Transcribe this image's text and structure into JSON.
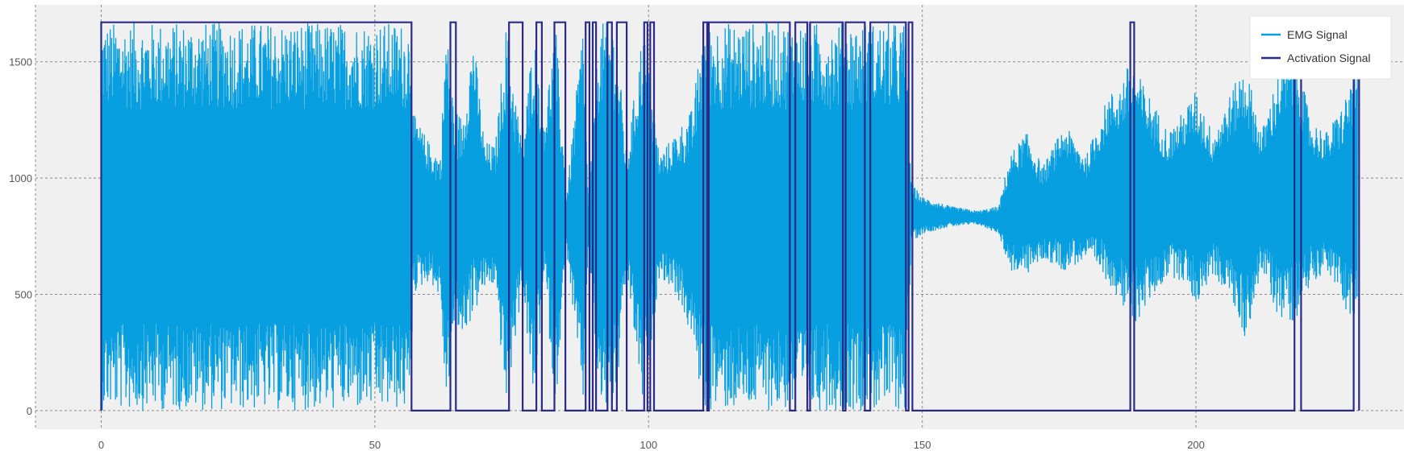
{
  "colors": {
    "plot_background": "#f0f0f0",
    "grid": "#8a8a8a",
    "emg": "#079fe0",
    "activation": "#2b2a86",
    "legend_background": "#ffffff"
  },
  "chart_data": {
    "type": "line",
    "title": "",
    "xlabel": "",
    "ylabel": "",
    "xlim": [
      -12,
      238
    ],
    "ylim": [
      -80,
      1745
    ],
    "xticks": [
      0,
      50,
      100,
      150,
      200
    ],
    "yticks": [
      0,
      500,
      1000,
      1500
    ],
    "grid": true,
    "legend_position": "top-right",
    "series": [
      {
        "name": "EMG Signal",
        "style": "dense oscillating signal",
        "envelope": [
          [
            0,
            0,
            1670
          ],
          [
            10,
            0,
            1670
          ],
          [
            20,
            0,
            1670
          ],
          [
            30,
            0,
            1670
          ],
          [
            40,
            0,
            1670
          ],
          [
            50,
            0,
            1670
          ],
          [
            56.5,
            0,
            1670
          ],
          [
            57,
            500,
            1280
          ],
          [
            60,
            560,
            1150
          ],
          [
            62,
            480,
            1100
          ],
          [
            63,
            0,
            1670
          ],
          [
            64.5,
            350,
            1300
          ],
          [
            66,
            320,
            1270
          ],
          [
            68,
            400,
            1620
          ],
          [
            70,
            520,
            1160
          ],
          [
            72,
            540,
            1140
          ],
          [
            74,
            0,
            1670
          ],
          [
            77,
            540,
            1130
          ],
          [
            79,
            0,
            1670
          ],
          [
            81,
            560,
            1270
          ],
          [
            83,
            0,
            1670
          ],
          [
            85,
            700,
            920
          ],
          [
            88,
            0,
            1670
          ],
          [
            89,
            720,
            900
          ],
          [
            91,
            0,
            1670
          ],
          [
            94,
            0,
            1670
          ],
          [
            96,
            600,
            1090
          ],
          [
            99,
            0,
            1670
          ],
          [
            102,
            580,
            1100
          ],
          [
            105,
            500,
            1200
          ],
          [
            108,
            300,
            1300
          ],
          [
            110,
            0,
            1670
          ],
          [
            115,
            0,
            1670
          ],
          [
            120,
            0,
            1670
          ],
          [
            125,
            0,
            1670
          ],
          [
            127,
            0,
            1670
          ],
          [
            130,
            0,
            1670
          ],
          [
            135,
            0,
            1670
          ],
          [
            138,
            0,
            1670
          ],
          [
            140,
            0,
            1670
          ],
          [
            145,
            0,
            1670
          ],
          [
            147,
            0,
            1670
          ],
          [
            148,
            720,
            980
          ],
          [
            150,
            760,
            920
          ],
          [
            155,
            790,
            880
          ],
          [
            160,
            800,
            860
          ],
          [
            164,
            760,
            880
          ],
          [
            166,
            600,
            1100
          ],
          [
            169,
            580,
            1200
          ],
          [
            172,
            650,
            1050
          ],
          [
            176,
            600,
            1230
          ],
          [
            180,
            650,
            1100
          ],
          [
            184,
            550,
            1360
          ],
          [
            186,
            480,
            1400
          ],
          [
            188,
            330,
            1510
          ],
          [
            191,
            450,
            1380
          ],
          [
            195,
            580,
            1200
          ],
          [
            198,
            550,
            1300
          ],
          [
            200,
            450,
            1380
          ],
          [
            203,
            580,
            1200
          ],
          [
            206,
            500,
            1350
          ],
          [
            209,
            300,
            1500
          ],
          [
            212,
            600,
            1200
          ],
          [
            215,
            400,
            1460
          ],
          [
            218,
            380,
            1560
          ],
          [
            221,
            550,
            1250
          ],
          [
            224,
            600,
            1200
          ],
          [
            227,
            450,
            1330
          ],
          [
            229.5,
            350,
            1520
          ]
        ]
      },
      {
        "name": "Activation Signal",
        "style": "step 0 / 1670",
        "low": 0,
        "high": 1670,
        "on_intervals": [
          [
            0,
            56.7
          ],
          [
            63.8,
            64.8
          ],
          [
            74.5,
            77
          ],
          [
            79.5,
            80.5
          ],
          [
            82.8,
            84.8
          ],
          [
            88.5,
            89.2
          ],
          [
            89.8,
            90.4
          ],
          [
            92.5,
            93.3
          ],
          [
            94.2,
            96
          ],
          [
            99.2,
            99.8
          ],
          [
            100.3,
            101
          ],
          [
            110,
            110.7
          ],
          [
            111,
            125.8
          ],
          [
            126.8,
            129
          ],
          [
            129.5,
            135.5
          ],
          [
            136,
            139.5
          ],
          [
            140.5,
            147
          ],
          [
            147.5,
            148.2
          ],
          [
            188,
            188.7
          ],
          [
            218,
            219.2
          ],
          [
            228.8,
            229.8
          ]
        ]
      }
    ]
  }
}
